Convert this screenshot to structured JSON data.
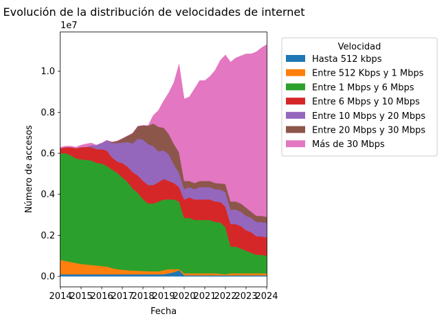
{
  "chart_data": {
    "type": "area",
    "stacked": true,
    "title": "Evolución de la distribución de velocidades de internet",
    "xlabel": "Fecha",
    "ylabel": "Número de accesos",
    "y_offset_text": "1e7",
    "xlim": [
      2014,
      2024
    ],
    "ylim": [
      -0.05,
      1.19
    ],
    "y_scale_factor": 10000000,
    "x_ticks": [
      2014,
      2015,
      2016,
      2017,
      2018,
      2019,
      2020,
      2021,
      2022,
      2023,
      2024
    ],
    "x_tick_labels": [
      "2014",
      "2015",
      "2016",
      "2017",
      "2018",
      "2019",
      "2020",
      "2021",
      "2022",
      "2023",
      "2024"
    ],
    "y_ticks": [
      0.0,
      0.2,
      0.4,
      0.6,
      0.8,
      1.0
    ],
    "y_tick_labels": [
      "0.0",
      "0.2",
      "0.4",
      "0.6",
      "0.8",
      "1.0"
    ],
    "grid": false,
    "legend": {
      "title": "Velocidad",
      "placement": "outside-right-top"
    },
    "x": [
      2014.0,
      2014.25,
      2014.5,
      2014.75,
      2015.0,
      2015.25,
      2015.5,
      2015.75,
      2016.0,
      2016.25,
      2016.5,
      2016.75,
      2017.0,
      2017.25,
      2017.5,
      2017.75,
      2018.0,
      2018.25,
      2018.5,
      2018.75,
      2019.0,
      2019.25,
      2019.5,
      2019.75,
      2020.0,
      2020.25,
      2020.5,
      2020.75,
      2021.0,
      2021.25,
      2021.5,
      2021.75,
      2022.0,
      2022.25,
      2022.5,
      2022.75,
      2023.0,
      2023.25,
      2023.5,
      2023.75,
      2024.0
    ],
    "series": [
      {
        "name": "Hasta 512 kbps",
        "color": "#1f77b4",
        "values": [
          0.01,
          0.01,
          0.01,
          0.01,
          0.01,
          0.01,
          0.01,
          0.01,
          0.01,
          0.01,
          0.01,
          0.01,
          0.01,
          0.01,
          0.01,
          0.01,
          0.01,
          0.01,
          0.01,
          0.01,
          0.01,
          0.015,
          0.02,
          0.03,
          0.005,
          0.005,
          0.005,
          0.005,
          0.005,
          0.005,
          0.005,
          0.005,
          0.005,
          0.005,
          0.005,
          0.005,
          0.005,
          0.005,
          0.005,
          0.005,
          0.005
        ]
      },
      {
        "name": "Entre 512 Kbps y 1 Mbps",
        "color": "#ff7f0e",
        "values": [
          0.07,
          0.065,
          0.06,
          0.055,
          0.05,
          0.048,
          0.045,
          0.043,
          0.04,
          0.038,
          0.03,
          0.025,
          0.022,
          0.02,
          0.018,
          0.017,
          0.016,
          0.015,
          0.015,
          0.014,
          0.02,
          0.02,
          0.015,
          0.005,
          0.01,
          0.01,
          0.01,
          0.01,
          0.01,
          0.01,
          0.01,
          0.008,
          0.005,
          0.01,
          0.01,
          0.01,
          0.01,
          0.01,
          0.01,
          0.01,
          0.01
        ]
      },
      {
        "name": "Entre 1 Mbps y 6 Mbps",
        "color": "#2ca02c",
        "values": [
          0.52,
          0.525,
          0.52,
          0.51,
          0.51,
          0.51,
          0.51,
          0.5,
          0.5,
          0.49,
          0.48,
          0.47,
          0.45,
          0.43,
          0.4,
          0.38,
          0.35,
          0.33,
          0.33,
          0.34,
          0.345,
          0.34,
          0.34,
          0.33,
          0.27,
          0.27,
          0.26,
          0.26,
          0.26,
          0.26,
          0.25,
          0.25,
          0.23,
          0.13,
          0.13,
          0.12,
          0.11,
          0.1,
          0.09,
          0.09,
          0.085
        ]
      },
      {
        "name": "Entre 6 Mbps y 10 Mbps",
        "color": "#d62728",
        "values": [
          0.025,
          0.03,
          0.04,
          0.05,
          0.06,
          0.063,
          0.065,
          0.067,
          0.07,
          0.075,
          0.06,
          0.055,
          0.07,
          0.075,
          0.08,
          0.085,
          0.09,
          0.09,
          0.09,
          0.095,
          0.1,
          0.09,
          0.08,
          0.07,
          0.09,
          0.1,
          0.1,
          0.1,
          0.1,
          0.1,
          0.1,
          0.1,
          0.1,
          0.11,
          0.11,
          0.11,
          0.1,
          0.1,
          0.09,
          0.09,
          0.09
        ]
      },
      {
        "name": "Entre 10 Mbps y 20 Mbps",
        "color": "#9467bd",
        "values": [
          0.0,
          0.0,
          0.0,
          0.0,
          0.0,
          0.0,
          0.01,
          0.02,
          0.03,
          0.05,
          0.07,
          0.09,
          0.1,
          0.12,
          0.14,
          0.18,
          0.2,
          0.2,
          0.19,
          0.15,
          0.14,
          0.13,
          0.09,
          0.07,
          0.05,
          0.05,
          0.05,
          0.06,
          0.06,
          0.06,
          0.06,
          0.06,
          0.07,
          0.07,
          0.07,
          0.07,
          0.07,
          0.07,
          0.07,
          0.07,
          0.07
        ]
      },
      {
        "name": "Entre 20 Mbps y 30 Mbps",
        "color": "#8c564b",
        "values": [
          0.0,
          0.0,
          0.0,
          0.0,
          0.0,
          0.0,
          0.0,
          0.0,
          0.0,
          0.0,
          0.005,
          0.01,
          0.02,
          0.03,
          0.05,
          0.06,
          0.07,
          0.09,
          0.11,
          0.12,
          0.11,
          0.1,
          0.1,
          0.1,
          0.04,
          0.03,
          0.03,
          0.03,
          0.03,
          0.03,
          0.03,
          0.03,
          0.04,
          0.04,
          0.04,
          0.04,
          0.04,
          0.03,
          0.03,
          0.03,
          0.03
        ]
      },
      {
        "name": "Más de 30 Mbps",
        "color": "#e377c2",
        "values": [
          0.005,
          0.005,
          0.005,
          0.005,
          0.01,
          0.015,
          0.01,
          0.0,
          0.0,
          0.0,
          0.0,
          0.0,
          0.0,
          0.0,
          0.0,
          0.0,
          0.0,
          0.0,
          0.04,
          0.08,
          0.13,
          0.2,
          0.3,
          0.43,
          0.4,
          0.41,
          0.46,
          0.49,
          0.49,
          0.51,
          0.55,
          0.6,
          0.63,
          0.68,
          0.7,
          0.72,
          0.75,
          0.77,
          0.8,
          0.82,
          0.84
        ]
      }
    ]
  }
}
